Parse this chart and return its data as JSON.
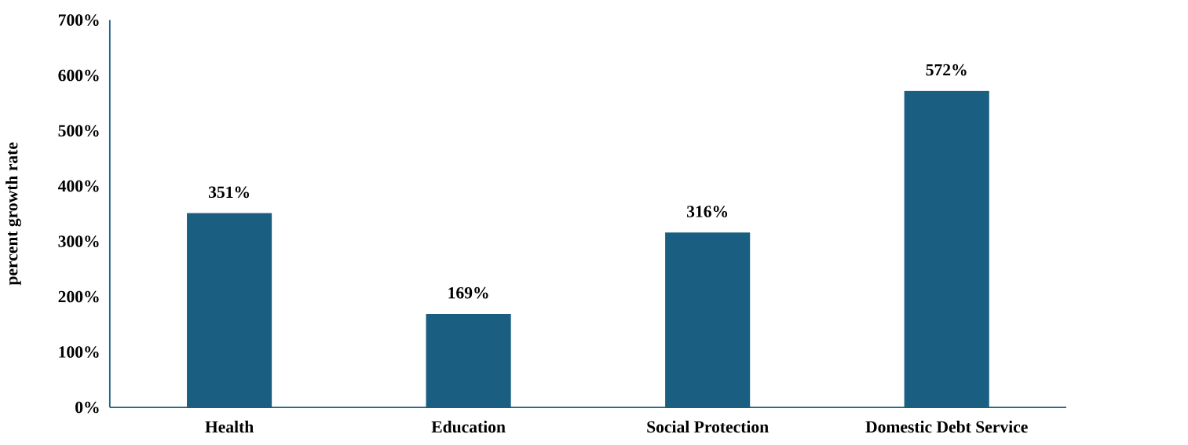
{
  "chart_data": {
    "type": "bar",
    "ylabel": "percent growth rate",
    "categories": [
      "Health",
      "Education",
      "Social Protection",
      "Domestic Debt Service"
    ],
    "values": [
      351,
      169,
      316,
      572
    ],
    "value_labels": [
      "351%",
      "169%",
      "316%",
      "572%"
    ],
    "color": "#1a5f82",
    "ylim": [
      0,
      700
    ],
    "yticks": [
      {
        "value": 0,
        "label": "0%"
      },
      {
        "value": 100,
        "label": "100%"
      },
      {
        "value": 200,
        "label": "200%"
      },
      {
        "value": 300,
        "label": "300%"
      },
      {
        "value": 400,
        "label": "400%"
      },
      {
        "value": 500,
        "label": "500%"
      },
      {
        "value": 600,
        "label": "600%"
      },
      {
        "value": 700,
        "label": "700%"
      }
    ],
    "grid": false
  }
}
